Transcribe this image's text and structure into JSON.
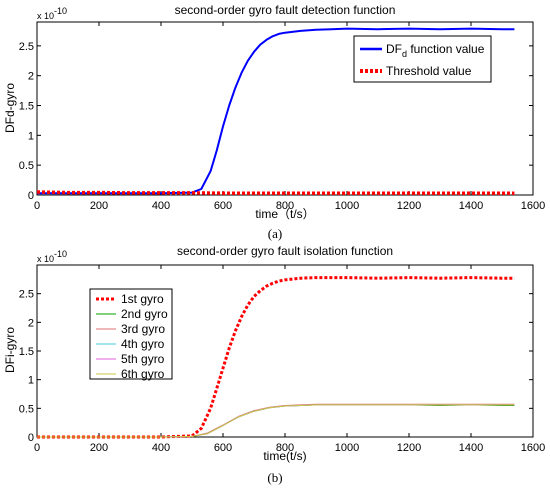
{
  "chart_data": [
    {
      "type": "line",
      "title": "second-order gyro fault detection function",
      "xlabel": "time（t/s）",
      "ylabel": "DFd-gyro",
      "y_exponent_label": "x 10",
      "y_exponent_power": "-10",
      "xlim": [
        0,
        1600
      ],
      "ylim": [
        0,
        2.9
      ],
      "xticks": [
        "0",
        "200",
        "400",
        "600",
        "800",
        "1000",
        "1200",
        "1400",
        "1600"
      ],
      "yticks": [
        "0",
        "0.5",
        "1",
        "1.5",
        "2",
        "2.5"
      ],
      "legend_position": "top-right",
      "caption": "(a)",
      "series": [
        {
          "name_main": "DF",
          "name_sub": "d",
          "name_tail": " function value",
          "color": "#0000ff",
          "style": "solid",
          "x": [
            0,
            100,
            200,
            300,
            400,
            500,
            530,
            560,
            580,
            600,
            620,
            640,
            660,
            680,
            700,
            720,
            740,
            760,
            780,
            800,
            850,
            900,
            950,
            1000,
            1100,
            1200,
            1300,
            1400,
            1500,
            1540
          ],
          "y": [
            0.03,
            0.03,
            0.03,
            0.03,
            0.03,
            0.04,
            0.1,
            0.4,
            0.75,
            1.15,
            1.5,
            1.8,
            2.05,
            2.25,
            2.4,
            2.52,
            2.6,
            2.66,
            2.7,
            2.72,
            2.75,
            2.77,
            2.78,
            2.79,
            2.78,
            2.79,
            2.78,
            2.79,
            2.78,
            2.78
          ]
        },
        {
          "name": "Threshold value",
          "color": "#ff0000",
          "style": "dotted",
          "x": [
            0,
            100,
            200,
            300,
            400,
            500,
            600,
            700,
            800,
            900,
            1000,
            1100,
            1200,
            1300,
            1400,
            1500,
            1540
          ],
          "y": [
            0.05,
            0.04,
            0.04,
            0.035,
            0.035,
            0.035,
            0.03,
            0.03,
            0.03,
            0.03,
            0.03,
            0.03,
            0.03,
            0.03,
            0.03,
            0.03,
            0.03
          ]
        }
      ]
    },
    {
      "type": "line",
      "title": "second-order gyro fault isolation function",
      "xlabel": "time(t/s)",
      "ylabel": "DFi-gyro",
      "y_exponent_label": "x 10",
      "y_exponent_power": "-10",
      "xlim": [
        0,
        1600
      ],
      "ylim": [
        0,
        3
      ],
      "xticks": [
        "0",
        "200",
        "400",
        "600",
        "800",
        "1000",
        "1200",
        "1400",
        "1600"
      ],
      "yticks": [
        "0",
        "0.5",
        "1",
        "1.5",
        "2",
        "2.5"
      ],
      "legend_position": "top-left",
      "caption": "(b)",
      "series": [
        {
          "name": "1st gyro",
          "color": "#ff0000",
          "style": "dotted",
          "x": [
            0,
            100,
            200,
            300,
            400,
            500,
            530,
            560,
            580,
            600,
            620,
            640,
            660,
            680,
            700,
            720,
            740,
            760,
            780,
            800,
            850,
            900,
            950,
            1000,
            1100,
            1200,
            1300,
            1400,
            1500,
            1540
          ],
          "y": [
            0,
            0,
            0,
            0,
            0,
            0.02,
            0.15,
            0.5,
            0.85,
            1.2,
            1.55,
            1.85,
            2.1,
            2.3,
            2.45,
            2.55,
            2.63,
            2.68,
            2.72,
            2.74,
            2.77,
            2.78,
            2.78,
            2.78,
            2.77,
            2.78,
            2.77,
            2.78,
            2.77,
            2.77
          ]
        },
        {
          "name": "2nd gyro",
          "color": "#00a000",
          "style": "solid",
          "x": [
            0,
            100,
            200,
            300,
            400,
            500,
            550,
            600,
            650,
            700,
            750,
            800,
            850,
            900,
            1000,
            1100,
            1200,
            1300,
            1400,
            1500,
            1540
          ],
          "y": [
            0,
            0,
            0,
            0,
            0,
            0.01,
            0.06,
            0.2,
            0.35,
            0.45,
            0.51,
            0.54,
            0.55,
            0.56,
            0.56,
            0.56,
            0.56,
            0.55,
            0.56,
            0.55,
            0.55
          ]
        },
        {
          "name": "3rd gyro",
          "color": "#e07070",
          "style": "solid",
          "x": [
            0,
            100,
            200,
            300,
            400,
            500,
            550,
            600,
            650,
            700,
            750,
            800,
            850,
            900,
            1000,
            1100,
            1200,
            1300,
            1400,
            1500,
            1540
          ],
          "y": [
            0,
            0,
            0,
            0,
            0,
            0.01,
            0.07,
            0.21,
            0.36,
            0.46,
            0.52,
            0.55,
            0.56,
            0.57,
            0.57,
            0.57,
            0.57,
            0.57,
            0.57,
            0.57,
            0.57
          ]
        },
        {
          "name": "4th gyro",
          "color": "#40c8e0",
          "style": "solid",
          "x": [
            0,
            100,
            200,
            300,
            400,
            500,
            550,
            600,
            650,
            700,
            750,
            800,
            850,
            900,
            1000,
            1100,
            1200,
            1300,
            1400,
            1500,
            1540
          ],
          "y": [
            0,
            0,
            0,
            0,
            0,
            0.01,
            0.06,
            0.2,
            0.35,
            0.45,
            0.51,
            0.54,
            0.55,
            0.56,
            0.56,
            0.56,
            0.56,
            0.56,
            0.56,
            0.56,
            0.56
          ]
        },
        {
          "name": "5th gyro",
          "color": "#e060e0",
          "style": "solid",
          "x": [
            0,
            100,
            200,
            300,
            400,
            500,
            550,
            600,
            650,
            700,
            750,
            800,
            850,
            900,
            1000,
            1100,
            1200,
            1300,
            1400,
            1500,
            1540
          ],
          "y": [
            0,
            0,
            0,
            0,
            0,
            0.01,
            0.06,
            0.2,
            0.35,
            0.45,
            0.51,
            0.54,
            0.55,
            0.56,
            0.56,
            0.56,
            0.56,
            0.56,
            0.56,
            0.56,
            0.56
          ]
        },
        {
          "name": "6th gyro",
          "color": "#c8c840",
          "style": "solid",
          "x": [
            0,
            100,
            200,
            300,
            400,
            500,
            550,
            600,
            650,
            700,
            750,
            800,
            850,
            900,
            1000,
            1100,
            1200,
            1300,
            1400,
            1500,
            1540
          ],
          "y": [
            0,
            0,
            0,
            0,
            0,
            0.01,
            0.06,
            0.2,
            0.35,
            0.45,
            0.51,
            0.54,
            0.55,
            0.56,
            0.56,
            0.56,
            0.56,
            0.56,
            0.56,
            0.56,
            0.56
          ]
        }
      ]
    }
  ]
}
